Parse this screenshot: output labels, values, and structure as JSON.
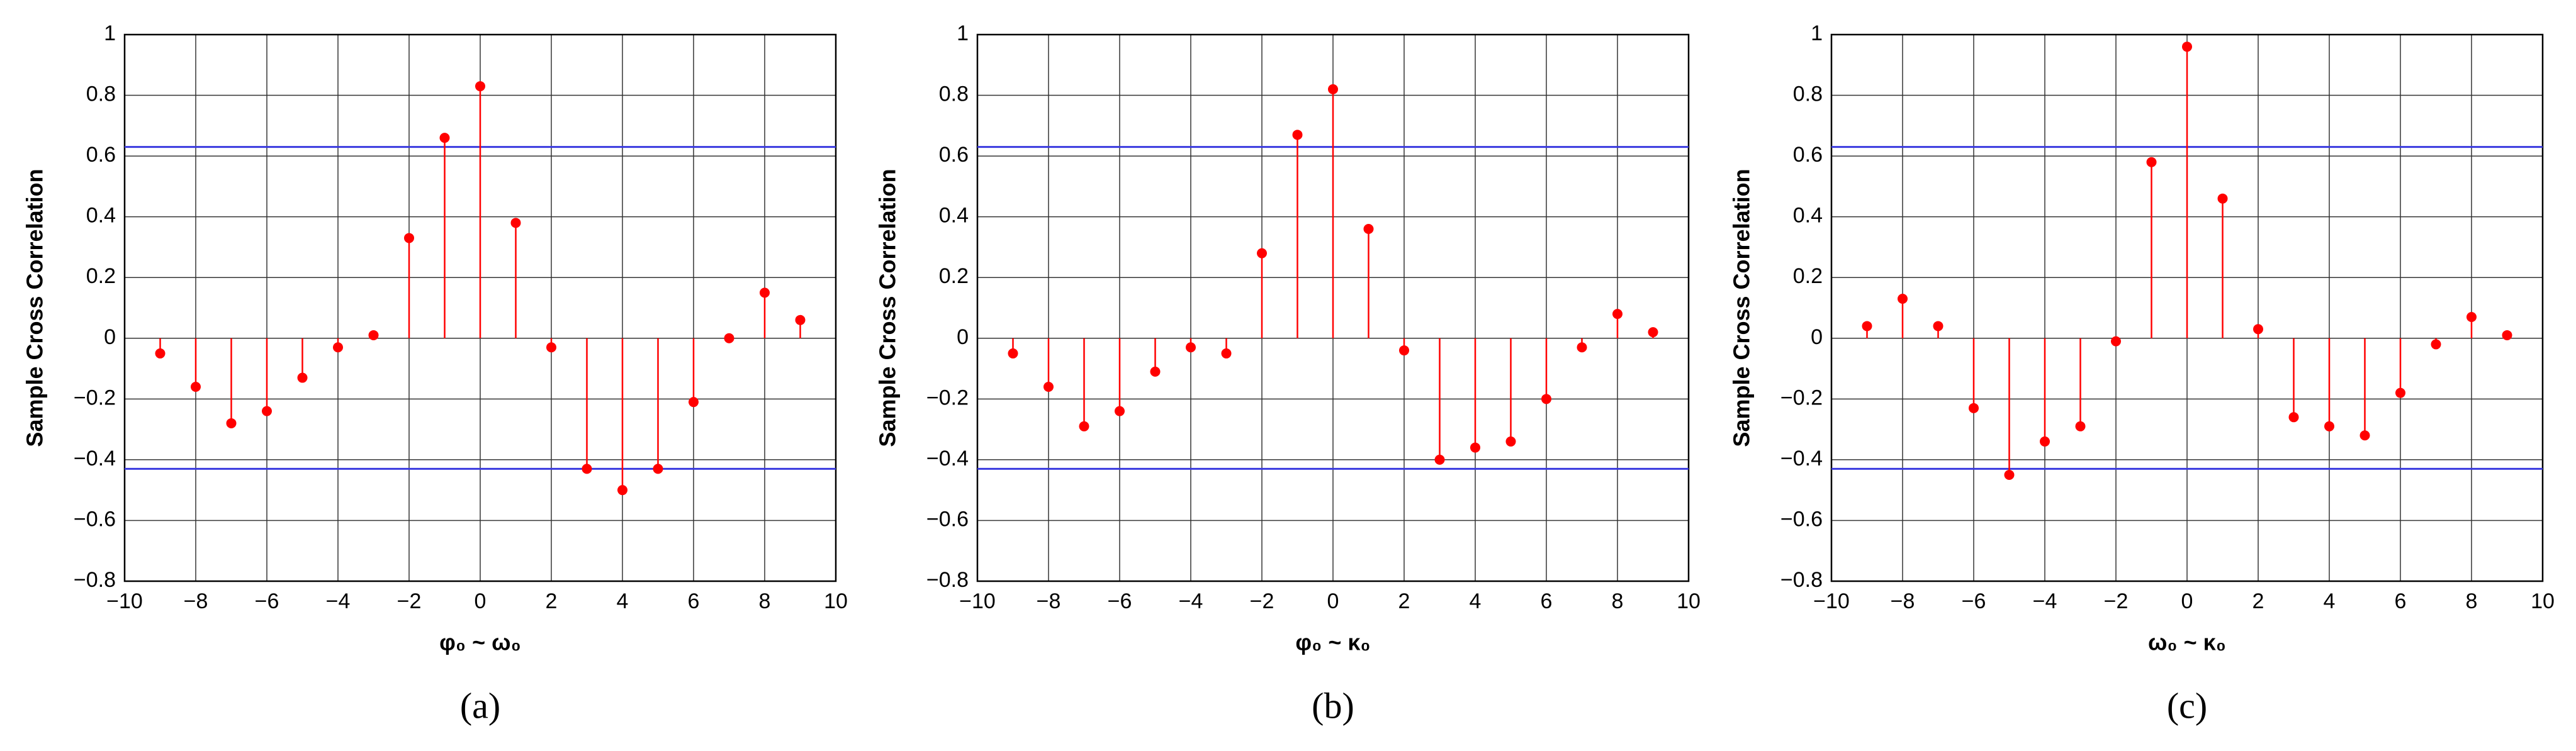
{
  "chart_data": [
    {
      "type": "stem",
      "caption": "(a)",
      "xlabel": "φ₀ ~ ω₀",
      "ylabel": "Sample Cross Correlation",
      "x": [
        -9,
        -8,
        -7,
        -6,
        -5,
        -4,
        -3,
        -2,
        -1,
        0,
        1,
        2,
        3,
        4,
        5,
        6,
        7,
        8,
        9
      ],
      "values": [
        -0.05,
        -0.16,
        -0.28,
        -0.24,
        -0.13,
        -0.03,
        0.01,
        0.33,
        0.66,
        0.83,
        0.38,
        -0.03,
        -0.43,
        -0.5,
        -0.43,
        -0.21,
        0.0,
        0.15,
        0.06
      ],
      "color": "#ff0000",
      "bounds": [
        0.63,
        -0.43
      ],
      "bounds_color": "#3a3adf",
      "xlim": [
        -10,
        10
      ],
      "ylim": [
        -0.8,
        1
      ],
      "xticks": [
        {
          "value": -10,
          "label": "−10"
        },
        {
          "value": -8,
          "label": "−8"
        },
        {
          "value": -6,
          "label": "−6"
        },
        {
          "value": -4,
          "label": "−4"
        },
        {
          "value": -2,
          "label": "−2"
        },
        0,
        2,
        4,
        6,
        8,
        10
      ],
      "yticks": [
        {
          "value": -0.8,
          "label": "−0.8"
        },
        {
          "value": -0.6,
          "label": "−0.6"
        },
        {
          "value": -0.4,
          "label": "−0.4"
        },
        {
          "value": -0.2,
          "label": "−0.2"
        },
        0,
        0.2,
        0.4,
        0.6,
        0.8,
        1
      ],
      "grid": true
    },
    {
      "type": "stem",
      "caption": "(b)",
      "xlabel": "φ₀ ~ κ₀",
      "ylabel": "Sample Cross Correlation",
      "x": [
        -9,
        -8,
        -7,
        -6,
        -5,
        -4,
        -3,
        -2,
        -1,
        0,
        1,
        2,
        3,
        4,
        5,
        6,
        7,
        8,
        9
      ],
      "values": [
        -0.05,
        -0.16,
        -0.29,
        -0.24,
        -0.11,
        -0.03,
        -0.05,
        0.28,
        0.67,
        0.82,
        0.36,
        -0.04,
        -0.4,
        -0.36,
        -0.34,
        -0.2,
        -0.03,
        0.08,
        0.02
      ],
      "color": "#ff0000",
      "bounds": [
        0.63,
        -0.43
      ],
      "bounds_color": "#3a3adf",
      "xlim": [
        -10,
        10
      ],
      "ylim": [
        -0.8,
        1
      ],
      "xticks": [
        {
          "value": -10,
          "label": "−10"
        },
        {
          "value": -8,
          "label": "−8"
        },
        {
          "value": -6,
          "label": "−6"
        },
        {
          "value": -4,
          "label": "−4"
        },
        {
          "value": -2,
          "label": "−2"
        },
        0,
        2,
        4,
        6,
        8,
        10
      ],
      "yticks": [
        {
          "value": -0.8,
          "label": "−0.8"
        },
        {
          "value": -0.6,
          "label": "−0.6"
        },
        {
          "value": -0.4,
          "label": "−0.4"
        },
        {
          "value": -0.2,
          "label": "−0.2"
        },
        0,
        0.2,
        0.4,
        0.6,
        0.8,
        1
      ],
      "grid": true
    },
    {
      "type": "stem",
      "caption": "(c)",
      "xlabel": "ω₀ ~ κ₀",
      "ylabel": "Sample Cross Correlation",
      "x": [
        -9,
        -8,
        -7,
        -6,
        -5,
        -4,
        -3,
        -2,
        -1,
        0,
        1,
        2,
        3,
        4,
        5,
        6,
        7,
        8,
        9
      ],
      "values": [
        0.04,
        0.13,
        0.04,
        -0.23,
        -0.45,
        -0.34,
        -0.29,
        -0.01,
        0.58,
        0.96,
        0.46,
        0.03,
        -0.26,
        -0.29,
        -0.32,
        -0.18,
        -0.02,
        0.07,
        0.01
      ],
      "color": "#ff0000",
      "bounds": [
        0.63,
        -0.43
      ],
      "bounds_color": "#3a3adf",
      "xlim": [
        -10,
        10
      ],
      "ylim": [
        -0.8,
        1
      ],
      "xticks": [
        {
          "value": -10,
          "label": "−10"
        },
        {
          "value": -8,
          "label": "−8"
        },
        {
          "value": -6,
          "label": "−6"
        },
        {
          "value": -4,
          "label": "−4"
        },
        {
          "value": -2,
          "label": "−2"
        },
        0,
        2,
        4,
        6,
        8,
        10
      ],
      "yticks": [
        {
          "value": -0.8,
          "label": "−0.8"
        },
        {
          "value": -0.6,
          "label": "−0.6"
        },
        {
          "value": -0.4,
          "label": "−0.4"
        },
        {
          "value": -0.2,
          "label": "−0.2"
        },
        0,
        0.2,
        0.4,
        0.6,
        0.8,
        1
      ],
      "grid": true
    }
  ]
}
